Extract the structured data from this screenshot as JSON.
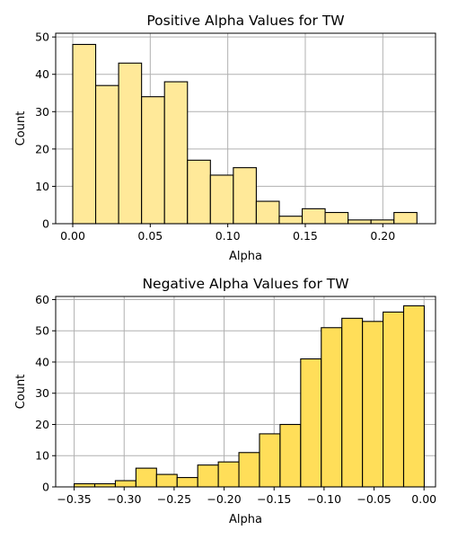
{
  "chart_data": [
    {
      "type": "bar",
      "title": "Positive Alpha Values for TW",
      "xlabel": "Alpha",
      "ylabel": "Count",
      "xlim": [
        -0.011,
        0.234
      ],
      "ylim": [
        0,
        51
      ],
      "xticks": [
        0.0,
        0.05,
        0.1,
        0.15,
        0.2
      ],
      "xtick_labels": [
        "0.00",
        "0.05",
        "0.10",
        "0.15",
        "0.20"
      ],
      "yticks": [
        0,
        10,
        20,
        30,
        40,
        50
      ],
      "ytick_labels": [
        "0",
        "10",
        "20",
        "30",
        "40",
        "50"
      ],
      "grid": true,
      "color": "#FFE999",
      "bin_start": 0.0,
      "bin_width": 0.0148,
      "values": [
        48,
        37,
        43,
        34,
        38,
        17,
        13,
        15,
        6,
        2,
        4,
        3,
        1,
        1,
        3
      ]
    },
    {
      "type": "bar",
      "title": "Negative Alpha Values for TW",
      "xlabel": "Alpha",
      "ylabel": "Count",
      "xlim": [
        -0.3685,
        0.0115
      ],
      "ylim": [
        0,
        61
      ],
      "xticks": [
        -0.35,
        -0.3,
        -0.25,
        -0.2,
        -0.15,
        -0.1,
        -0.05,
        0.0
      ],
      "xtick_labels": [
        "−0.35",
        "−0.30",
        "−0.25",
        "−0.20",
        "−0.15",
        "−0.10",
        "−0.05",
        "0.00"
      ],
      "yticks": [
        0,
        10,
        20,
        30,
        40,
        50,
        60
      ],
      "ytick_labels": [
        "0",
        "10",
        "20",
        "30",
        "40",
        "50",
        "60"
      ],
      "grid": true,
      "color": "#FFDE59",
      "bin_start": -0.35,
      "bin_width": 0.0206,
      "values": [
        1,
        1,
        2,
        6,
        4,
        3,
        7,
        8,
        11,
        17,
        20,
        41,
        51,
        54,
        53,
        56,
        58
      ]
    }
  ]
}
